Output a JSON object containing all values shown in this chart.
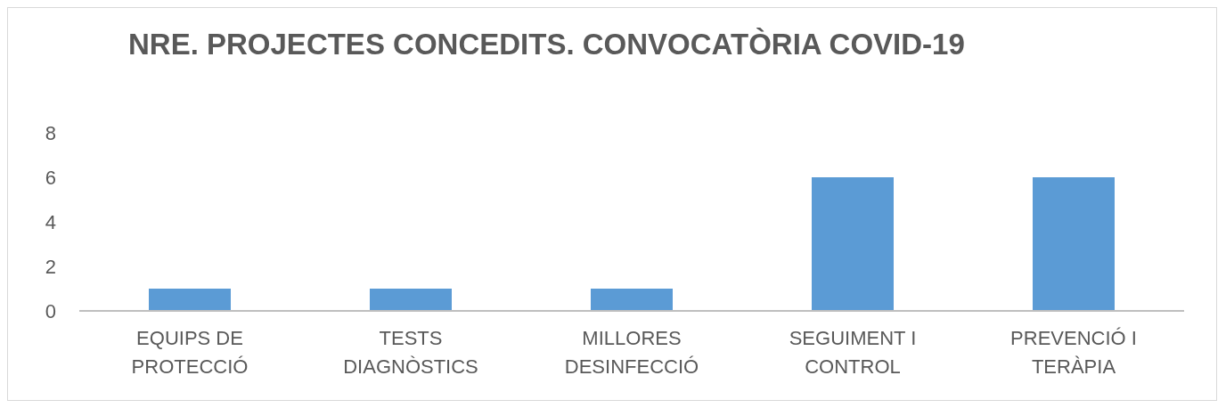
{
  "chart_data": {
    "type": "bar",
    "title": "NRE. PROJECTES CONCEDITS. CONVOCATÒRIA COVID-19",
    "categories": [
      "EQUIPS DE PROTECCIÓ",
      "TESTS DIAGNÒSTICS",
      "MILLORES DESINFECCIÓ",
      "SEGUIMENT I CONTROL",
      "PREVENCIÓ I TERÀPIA"
    ],
    "values": [
      1,
      1,
      1,
      6,
      6
    ],
    "color": "#5b9bd5",
    "ylim": [
      0,
      8
    ],
    "yticks": [
      0,
      2,
      4,
      6,
      8
    ],
    "grid": false,
    "legend": false
  }
}
